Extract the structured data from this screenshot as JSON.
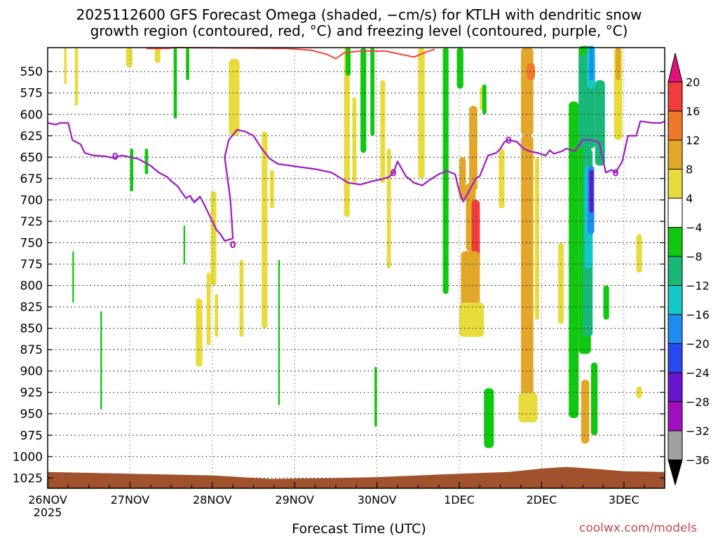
{
  "chart_data": {
    "type": "heatmap",
    "title": "2025112600 GFS Forecast Omega (shaded, −cm/s) for KTLH with dendritic snow",
    "subtitle": "growth region (contoured, red, °C) and freezing level (contoured, purple, °C)",
    "xlabel": "Forecast Time (UTC)",
    "credit": "coolwx.com/models",
    "y_axis": {
      "scale": "pressure (hPa), inverted",
      "ylim": [
        1037,
        522
      ],
      "ticks": [
        550,
        575,
        600,
        625,
        650,
        675,
        700,
        725,
        750,
        775,
        800,
        825,
        850,
        875,
        900,
        925,
        950,
        975,
        1000,
        1025
      ]
    },
    "x_axis": {
      "ticks": [
        "26NOV",
        "27NOV",
        "28NOV",
        "29NOV",
        "30NOV",
        "1DEC",
        "2DEC",
        "3DEC"
      ],
      "first_tick_year": "2025",
      "xlim_days": [
        0,
        7.5
      ]
    },
    "grid": true,
    "colorbar": {
      "labels": [
        "20",
        "16",
        "12",
        "8",
        "4",
        "−4",
        "−8",
        "−12",
        "−16",
        "−20",
        "−24",
        "−28",
        "−32",
        "−36"
      ],
      "colors": [
        "#e0127a",
        "#f03c3c",
        "#f07828",
        "#e2a628",
        "#e8dc3c",
        "#ffffff",
        "#10c810",
        "#18b878",
        "#14c8c8",
        "#1e8cf0",
        "#2848f0",
        "#6a14d0",
        "#a010c0",
        "#a0a0a0",
        "#000000"
      ]
    },
    "freezing_level": {
      "label": "0",
      "color": "#a020c0",
      "points": [
        [
          0,
          610
        ],
        [
          0.1,
          612
        ],
        [
          0.15,
          610
        ],
        [
          0.25,
          610
        ],
        [
          0.3,
          630
        ],
        [
          0.4,
          635
        ],
        [
          0.45,
          645
        ],
        [
          0.55,
          648
        ],
        [
          0.7,
          649
        ],
        [
          0.8,
          651
        ],
        [
          0.9,
          648
        ],
        [
          1.0,
          650
        ],
        [
          1.1,
          652
        ],
        [
          1.25,
          660
        ],
        [
          1.35,
          668
        ],
        [
          1.45,
          673
        ],
        [
          1.5,
          678
        ],
        [
          1.58,
          684
        ],
        [
          1.62,
          690
        ],
        [
          1.68,
          698
        ],
        [
          1.73,
          695
        ],
        [
          1.78,
          703
        ],
        [
          1.85,
          696
        ],
        [
          1.9,
          705
        ],
        [
          1.95,
          715
        ],
        [
          2.0,
          725
        ],
        [
          2.05,
          735
        ],
        [
          2.1,
          740
        ],
        [
          2.15,
          748
        ],
        [
          2.25,
          745
        ],
        [
          2.22,
          700
        ],
        [
          2.15,
          650
        ],
        [
          2.2,
          630
        ],
        [
          2.3,
          618
        ],
        [
          2.4,
          620
        ],
        [
          2.5,
          625
        ],
        [
          2.6,
          640
        ],
        [
          2.7,
          652
        ],
        [
          2.8,
          658
        ],
        [
          2.95,
          660
        ],
        [
          3.1,
          662
        ],
        [
          3.25,
          664
        ],
        [
          3.45,
          668
        ],
        [
          3.65,
          680
        ],
        [
          3.8,
          682
        ],
        [
          3.95,
          678
        ],
        [
          4.05,
          676
        ],
        [
          4.15,
          673
        ],
        [
          4.2,
          668
        ],
        [
          4.25,
          655
        ],
        [
          4.35,
          672
        ],
        [
          4.45,
          680
        ],
        [
          4.55,
          683
        ],
        [
          4.65,
          676
        ],
        [
          4.75,
          670
        ],
        [
          4.85,
          666
        ],
        [
          4.95,
          670
        ],
        [
          5.0,
          690
        ],
        [
          5.05,
          702
        ],
        [
          5.1,
          693
        ],
        [
          5.2,
          675
        ],
        [
          5.25,
          672
        ],
        [
          5.35,
          648
        ],
        [
          5.45,
          645
        ],
        [
          5.5,
          640
        ],
        [
          5.55,
          632
        ],
        [
          5.6,
          630
        ],
        [
          5.7,
          632
        ],
        [
          5.78,
          640
        ],
        [
          5.85,
          643
        ],
        [
          5.95,
          645
        ],
        [
          6.05,
          648
        ],
        [
          6.1,
          642
        ],
        [
          6.15,
          646
        ],
        [
          6.25,
          643
        ],
        [
          6.3,
          640
        ],
        [
          6.4,
          643
        ],
        [
          6.5,
          630
        ],
        [
          6.6,
          630
        ],
        [
          6.7,
          633
        ],
        [
          6.78,
          668
        ],
        [
          6.85,
          665
        ],
        [
          6.9,
          668
        ],
        [
          6.98,
          655
        ],
        [
          7.05,
          625
        ],
        [
          7.15,
          625
        ],
        [
          7.2,
          608
        ],
        [
          7.35,
          610
        ],
        [
          7.45,
          610
        ],
        [
          7.5,
          608
        ]
      ]
    },
    "dendritic_zone_red": {
      "color": "#f04040",
      "points": [
        [
          1.2,
          523
        ],
        [
          1.45,
          523
        ],
        [
          1.55,
          522
        ],
        [
          2.9,
          523
        ],
        [
          3.2,
          525
        ],
        [
          3.4,
          530
        ],
        [
          3.5,
          535
        ],
        [
          3.6,
          528
        ],
        [
          3.8,
          526
        ],
        [
          4.1,
          526
        ],
        [
          4.3,
          530
        ],
        [
          4.45,
          533
        ],
        [
          4.6,
          527
        ],
        [
          4.7,
          524
        ]
      ]
    },
    "omega_patches": [
      {
        "x": [
          0.2,
          0.23
        ],
        "p": [
          522,
          565
        ],
        "c": "#e8dc3c"
      },
      {
        "x": [
          0.33,
          0.37
        ],
        "p": [
          522,
          590
        ],
        "c": "#e8dc3c"
      },
      {
        "x": [
          0.95,
          1.03
        ],
        "p": [
          522,
          545
        ],
        "c": "#e8dc3c"
      },
      {
        "x": [
          1.3,
          1.37
        ],
        "p": [
          522,
          540
        ],
        "c": "#e8dc3c"
      },
      {
        "x": [
          1.53,
          1.57
        ],
        "p": [
          522,
          605
        ],
        "c": "#10c810"
      },
      {
        "x": [
          1.68,
          1.72
        ],
        "p": [
          522,
          560
        ],
        "c": "#10c810"
      },
      {
        "x": [
          2.2,
          2.33
        ],
        "p": [
          535,
          625
        ],
        "c": "#e8dc3c"
      },
      {
        "x": [
          1.98,
          2.05
        ],
        "p": [
          690,
          800
        ],
        "c": "#e8dc3c"
      },
      {
        "x": [
          1.8,
          1.88
        ],
        "p": [
          815,
          895
        ],
        "c": "#e8dc3c"
      },
      {
        "x": [
          1.93,
          1.98
        ],
        "p": [
          785,
          870
        ],
        "c": "#e8dc3c"
      },
      {
        "x": [
          2.03,
          2.07
        ],
        "p": [
          810,
          860
        ],
        "c": "#e8dc3c"
      },
      {
        "x": [
          2.33,
          2.38
        ],
        "p": [
          770,
          860
        ],
        "c": "#e8dc3c"
      },
      {
        "x": [
          2.6,
          2.67
        ],
        "p": [
          620,
          850
        ],
        "c": "#e8dc3c"
      },
      {
        "x": [
          2.7,
          2.75
        ],
        "p": [
          665,
          710
        ],
        "c": "#e8dc3c"
      },
      {
        "x": [
          1.0,
          1.04
        ],
        "p": [
          640,
          690
        ],
        "c": "#10c810"
      },
      {
        "x": [
          1.18,
          1.22
        ],
        "p": [
          640,
          670
        ],
        "c": "#10c810"
      },
      {
        "x": [
          0.64,
          0.66
        ],
        "p": [
          830,
          945
        ],
        "c": "#10c810"
      },
      {
        "x": [
          0.3,
          0.32
        ],
        "p": [
          760,
          820
        ],
        "c": "#10c810"
      },
      {
        "x": [
          1.65,
          1.67
        ],
        "p": [
          730,
          775
        ],
        "c": "#10c810"
      },
      {
        "x": [
          2.8,
          2.82
        ],
        "p": [
          770,
          940
        ],
        "c": "#10c810"
      },
      {
        "x": [
          3.6,
          3.67
        ],
        "p": [
          522,
          720
        ],
        "c": "#e8dc3c"
      },
      {
        "x": [
          3.7,
          3.75
        ],
        "p": [
          580,
          680
        ],
        "c": "#e8dc3c"
      },
      {
        "x": [
          3.62,
          3.68
        ],
        "p": [
          522,
          555
        ],
        "c": "#10c810"
      },
      {
        "x": [
          3.8,
          3.87
        ],
        "p": [
          522,
          645
        ],
        "c": "#10c810"
      },
      {
        "x": [
          3.92,
          3.97
        ],
        "p": [
          522,
          625
        ],
        "c": "#10c810"
      },
      {
        "x": [
          4.04,
          4.1
        ],
        "p": [
          560,
          680
        ],
        "c": "#e8dc3c"
      },
      {
        "x": [
          4.12,
          4.17
        ],
        "p": [
          640,
          780
        ],
        "c": "#e8dc3c"
      },
      {
        "x": [
          3.97,
          4.0
        ],
        "p": [
          895,
          965
        ],
        "c": "#10c810"
      },
      {
        "x": [
          4.5,
          4.58
        ],
        "p": [
          522,
          675
        ],
        "c": "#e8dc3c"
      },
      {
        "x": [
          4.8,
          4.87
        ],
        "p": [
          522,
          810
        ],
        "c": "#10c810"
      },
      {
        "x": [
          4.97,
          5.05
        ],
        "p": [
          522,
          570
        ],
        "c": "#10c810"
      },
      {
        "x": [
          5.25,
          5.3
        ],
        "p": [
          568,
          595
        ],
        "c": "#e8dc3c"
      },
      {
        "x": [
          5.12,
          5.22
        ],
        "p": [
          590,
          690
        ],
        "c": "#e2a628"
      },
      {
        "x": [
          5.0,
          5.08
        ],
        "p": [
          650,
          700
        ],
        "c": "#e2a628"
      },
      {
        "x": [
          5.08,
          5.2
        ],
        "p": [
          680,
          760
        ],
        "c": "#e2a628"
      },
      {
        "x": [
          5.15,
          5.25
        ],
        "p": [
          700,
          780
        ],
        "c": "#f03c3c"
      },
      {
        "x": [
          5.02,
          5.25
        ],
        "p": [
          760,
          845
        ],
        "c": "#e2a628"
      },
      {
        "x": [
          5.0,
          5.3
        ],
        "p": [
          820,
          860
        ],
        "c": "#e8dc3c"
      },
      {
        "x": [
          5.48,
          5.55
        ],
        "p": [
          640,
          710
        ],
        "c": "#e8dc3c"
      },
      {
        "x": [
          5.28,
          5.33
        ],
        "p": [
          565,
          600
        ],
        "c": "#10c810"
      },
      {
        "x": [
          5.75,
          5.9
        ],
        "p": [
          522,
          625
        ],
        "c": "#e2a628"
      },
      {
        "x": [
          5.82,
          5.92
        ],
        "p": [
          540,
          560
        ],
        "c": "#f07828"
      },
      {
        "x": [
          5.75,
          5.9
        ],
        "p": [
          625,
          930
        ],
        "c": "#e2a628"
      },
      {
        "x": [
          5.72,
          5.95
        ],
        "p": [
          925,
          960
        ],
        "c": "#e8dc3c"
      },
      {
        "x": [
          5.3,
          5.42
        ],
        "p": [
          920,
          990
        ],
        "c": "#10c810"
      },
      {
        "x": [
          5.92,
          5.97
        ],
        "p": [
          650,
          840
        ],
        "c": "#e8dc3c"
      },
      {
        "x": [
          6.2,
          6.27
        ],
        "p": [
          750,
          845
        ],
        "c": "#e8dc3c"
      },
      {
        "x": [
          6.33,
          6.45
        ],
        "p": [
          585,
          955
        ],
        "c": "#10c810"
      },
      {
        "x": [
          6.45,
          6.6
        ],
        "p": [
          520,
          880
        ],
        "c": "#10c810"
      },
      {
        "x": [
          6.45,
          6.65
        ],
        "p": [
          530,
          640
        ],
        "c": "#18b878"
      },
      {
        "x": [
          6.55,
          6.65
        ],
        "p": [
          520,
          570
        ],
        "c": "#14c8c8"
      },
      {
        "x": [
          6.58,
          6.63
        ],
        "p": [
          520,
          560
        ],
        "c": "#1e8cf0"
      },
      {
        "x": [
          6.5,
          6.62
        ],
        "p": [
          640,
          860
        ],
        "c": "#18b878"
      },
      {
        "x": [
          6.52,
          6.62
        ],
        "p": [
          660,
          780
        ],
        "c": "#14c8c8"
      },
      {
        "x": [
          6.56,
          6.64
        ],
        "p": [
          660,
          740
        ],
        "c": "#1e8cf0"
      },
      {
        "x": [
          6.58,
          6.63
        ],
        "p": [
          665,
          715
        ],
        "c": "#6a14d0"
      },
      {
        "x": [
          6.65,
          6.77
        ],
        "p": [
          560,
          660
        ],
        "c": "#18b878"
      },
      {
        "x": [
          6.48,
          6.58
        ],
        "p": [
          910,
          985
        ],
        "c": "#e2a628"
      },
      {
        "x": [
          6.6,
          6.68
        ],
        "p": [
          890,
          975
        ],
        "c": "#10c810"
      },
      {
        "x": [
          6.75,
          6.82
        ],
        "p": [
          800,
          840
        ],
        "c": "#10c810"
      },
      {
        "x": [
          6.88,
          6.98
        ],
        "p": [
          522,
          630
        ],
        "c": "#e8dc3c"
      },
      {
        "x": [
          6.9,
          6.96
        ],
        "p": [
          522,
          560
        ],
        "c": "#e2a628"
      },
      {
        "x": [
          7.15,
          7.22
        ],
        "p": [
          740,
          785
        ],
        "c": "#e8dc3c"
      },
      {
        "x": [
          7.15,
          7.22
        ],
        "p": [
          918,
          932
        ],
        "c": "#e8dc3c"
      }
    ],
    "terrain": {
      "color": "#a0522d",
      "bottom": 1037,
      "points": [
        [
          0,
          1018
        ],
        [
          1.0,
          1020
        ],
        [
          2.0,
          1022
        ],
        [
          2.7,
          1026
        ],
        [
          3.5,
          1025
        ],
        [
          4.0,
          1024
        ],
        [
          5.0,
          1020
        ],
        [
          5.6,
          1018
        ],
        [
          6.0,
          1014
        ],
        [
          6.3,
          1012
        ],
        [
          6.6,
          1014
        ],
        [
          7.0,
          1017
        ],
        [
          7.5,
          1018
        ]
      ]
    }
  }
}
